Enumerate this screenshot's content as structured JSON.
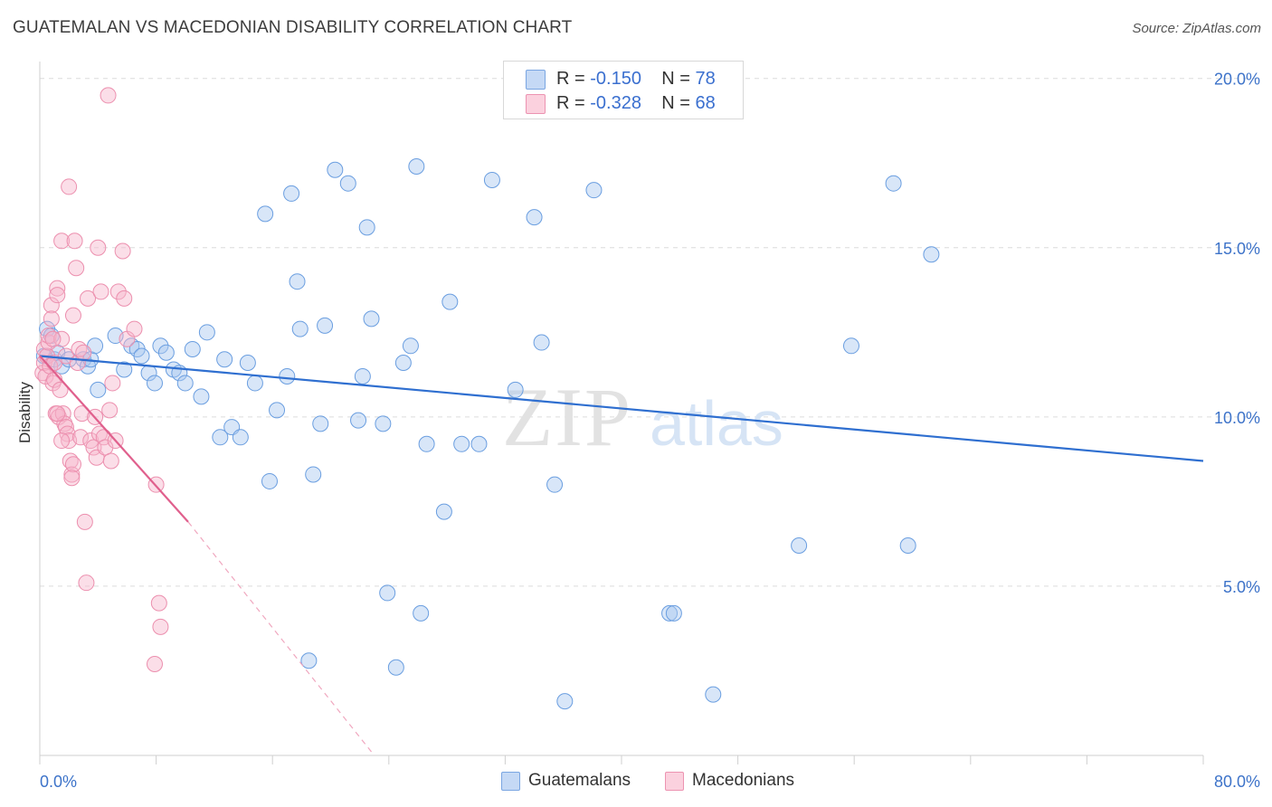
{
  "header": {
    "title": "GUATEMALAN VS MACEDONIAN DISABILITY CORRELATION CHART",
    "source": "Source: ZipAtlas.com"
  },
  "legend": {
    "rows": [
      {
        "r_label": "R = ",
        "r_value": "-0.150",
        "n_label": "N = ",
        "n_value": "78",
        "color": "#a9c8f0"
      },
      {
        "r_label": "R = ",
        "r_value": "-0.328",
        "n_label": "N = ",
        "n_value": "68",
        "color": "#f7b6cb"
      }
    ]
  },
  "bottom_legend": [
    {
      "label": "Guatemalans",
      "color": "#a9c8f0"
    },
    {
      "label": "Macedonians",
      "color": "#f7b6cb"
    }
  ],
  "watermark": {
    "zip": "ZIP",
    "atlas": "atlas"
  },
  "chart_data": {
    "type": "scatter",
    "title": "GUATEMALAN VS MACEDONIAN DISABILITY CORRELATION CHART",
    "ylabel": "Disability",
    "xlabel": "",
    "xlim": [
      0,
      80
    ],
    "ylim": [
      0,
      20.5
    ],
    "x_tick_labels": [
      "0.0%",
      "80.0%"
    ],
    "y_ticks": [
      5,
      10,
      15,
      20
    ],
    "y_tick_labels": [
      "5.0%",
      "10.0%",
      "15.0%",
      "20.0%"
    ],
    "grid": "horizontal dashed",
    "series": [
      {
        "name": "Guatemalans",
        "color": "#3a78d4",
        "fill": "#a9c8f0",
        "points": [
          [
            0.5,
            12.6
          ],
          [
            0.8,
            12.4
          ],
          [
            1.0,
            11.7
          ],
          [
            1.2,
            11.9
          ],
          [
            1.5,
            11.5
          ],
          [
            2.0,
            11.7
          ],
          [
            3.0,
            11.7
          ],
          [
            3.3,
            11.5
          ],
          [
            3.5,
            11.7
          ],
          [
            3.8,
            12.1
          ],
          [
            4.0,
            10.8
          ],
          [
            5.2,
            12.4
          ],
          [
            5.8,
            11.4
          ],
          [
            6.3,
            12.1
          ],
          [
            6.7,
            12.0
          ],
          [
            7.0,
            11.8
          ],
          [
            7.5,
            11.3
          ],
          [
            7.9,
            11.0
          ],
          [
            8.3,
            12.1
          ],
          [
            8.7,
            11.9
          ],
          [
            9.2,
            11.4
          ],
          [
            9.6,
            11.3
          ],
          [
            10.0,
            11.0
          ],
          [
            10.5,
            12.0
          ],
          [
            11.1,
            10.6
          ],
          [
            11.5,
            12.5
          ],
          [
            12.4,
            9.4
          ],
          [
            12.7,
            11.7
          ],
          [
            13.2,
            9.7
          ],
          [
            13.8,
            9.4
          ],
          [
            14.3,
            11.6
          ],
          [
            14.8,
            11.0
          ],
          [
            15.5,
            16.0
          ],
          [
            15.8,
            8.1
          ],
          [
            16.3,
            10.2
          ],
          [
            17.0,
            11.2
          ],
          [
            17.3,
            16.6
          ],
          [
            17.7,
            14.0
          ],
          [
            17.9,
            12.6
          ],
          [
            18.5,
            2.8
          ],
          [
            18.8,
            8.3
          ],
          [
            19.3,
            9.8
          ],
          [
            19.6,
            12.7
          ],
          [
            20.3,
            17.3
          ],
          [
            21.2,
            16.9
          ],
          [
            21.9,
            9.9
          ],
          [
            22.2,
            11.2
          ],
          [
            22.5,
            15.6
          ],
          [
            22.8,
            12.9
          ],
          [
            23.6,
            9.8
          ],
          [
            23.9,
            4.8
          ],
          [
            24.5,
            2.6
          ],
          [
            25.0,
            11.6
          ],
          [
            25.5,
            12.1
          ],
          [
            25.9,
            17.4
          ],
          [
            26.2,
            4.2
          ],
          [
            26.6,
            9.2
          ],
          [
            28.2,
            13.4
          ],
          [
            27.8,
            7.2
          ],
          [
            29.0,
            9.2
          ],
          [
            30.2,
            9.2
          ],
          [
            31.1,
            17.0
          ],
          [
            32.7,
            10.8
          ],
          [
            34.0,
            15.9
          ],
          [
            34.5,
            12.2
          ],
          [
            35.4,
            8.0
          ],
          [
            36.1,
            1.6
          ],
          [
            38.1,
            16.7
          ],
          [
            43.3,
            4.2
          ],
          [
            43.6,
            4.2
          ],
          [
            46.3,
            1.8
          ],
          [
            52.2,
            6.2
          ],
          [
            55.8,
            12.1
          ],
          [
            58.7,
            16.9
          ],
          [
            59.7,
            6.2
          ],
          [
            61.3,
            14.8
          ],
          [
            40.0,
            20.0
          ],
          [
            0.3,
            11.8
          ]
        ],
        "trend": {
          "x": [
            0,
            80
          ],
          "y": [
            11.8,
            8.7
          ]
        }
      },
      {
        "name": "Macedonians",
        "color": "#e46b97",
        "fill": "#f7b6cb",
        "points": [
          [
            0.2,
            11.3
          ],
          [
            0.3,
            11.6
          ],
          [
            0.3,
            12.0
          ],
          [
            0.4,
            11.2
          ],
          [
            0.5,
            11.8
          ],
          [
            0.6,
            12.2
          ],
          [
            0.6,
            12.4
          ],
          [
            0.7,
            11.5
          ],
          [
            0.8,
            13.3
          ],
          [
            0.8,
            12.9
          ],
          [
            0.9,
            11.0
          ],
          [
            1.0,
            11.1
          ],
          [
            1.0,
            11.6
          ],
          [
            1.1,
            10.1
          ],
          [
            1.2,
            13.8
          ],
          [
            1.2,
            13.6
          ],
          [
            1.3,
            10.0
          ],
          [
            1.4,
            10.8
          ],
          [
            1.5,
            15.2
          ],
          [
            1.5,
            12.3
          ],
          [
            1.6,
            10.1
          ],
          [
            1.7,
            9.8
          ],
          [
            1.8,
            11.8
          ],
          [
            1.8,
            9.7
          ],
          [
            1.9,
            9.5
          ],
          [
            2.0,
            9.3
          ],
          [
            2.1,
            8.7
          ],
          [
            2.2,
            8.3
          ],
          [
            2.3,
            13.0
          ],
          [
            2.3,
            8.6
          ],
          [
            2.4,
            15.2
          ],
          [
            2.5,
            14.4
          ],
          [
            2.6,
            11.6
          ],
          [
            2.7,
            12.0
          ],
          [
            2.8,
            9.4
          ],
          [
            2.9,
            10.1
          ],
          [
            3.0,
            11.9
          ],
          [
            3.1,
            6.9
          ],
          [
            3.2,
            5.1
          ],
          [
            3.3,
            13.5
          ],
          [
            3.5,
            9.3
          ],
          [
            3.7,
            9.1
          ],
          [
            3.8,
            10.0
          ],
          [
            3.9,
            8.8
          ],
          [
            4.0,
            15.0
          ],
          [
            4.1,
            9.5
          ],
          [
            4.2,
            13.7
          ],
          [
            4.4,
            9.4
          ],
          [
            4.5,
            9.1
          ],
          [
            4.8,
            10.2
          ],
          [
            4.9,
            8.7
          ],
          [
            5.0,
            11.0
          ],
          [
            5.2,
            9.3
          ],
          [
            5.4,
            13.7
          ],
          [
            5.7,
            14.9
          ],
          [
            5.8,
            13.5
          ],
          [
            6.0,
            12.3
          ],
          [
            6.5,
            12.6
          ],
          [
            4.7,
            19.5
          ],
          [
            2.0,
            16.8
          ],
          [
            1.5,
            9.3
          ],
          [
            2.2,
            8.2
          ],
          [
            0.9,
            12.3
          ],
          [
            1.2,
            10.1
          ],
          [
            7.9,
            2.7
          ],
          [
            8.2,
            4.5
          ],
          [
            8.3,
            3.8
          ],
          [
            8.0,
            8.0
          ]
        ],
        "trend": {
          "x": [
            0,
            10.2
          ],
          "y": [
            11.8,
            6.9
          ]
        },
        "trend_extension": {
          "x": [
            10.2,
            23.0
          ],
          "y": [
            6.9,
            0.0
          ]
        }
      }
    ]
  }
}
